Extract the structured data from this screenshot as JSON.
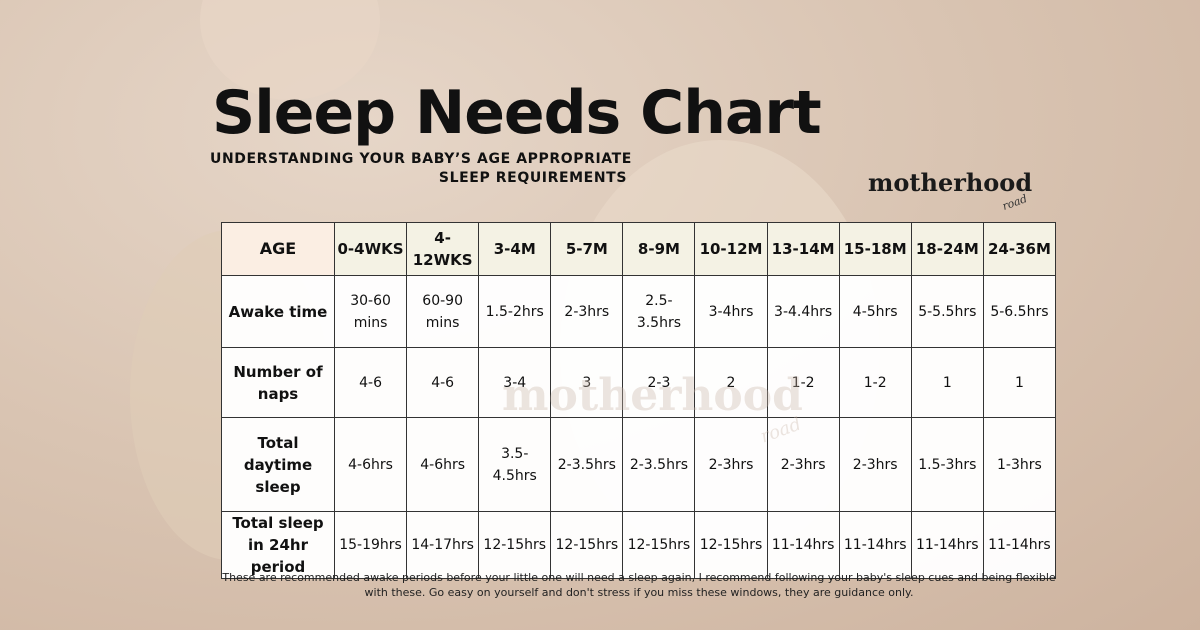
{
  "header": {
    "title": "Sleep Needs Chart",
    "subtitle_lines": [
      "UNDERSTANDING YOUR BABY’S AGE APPROPRIATE",
      "SLEEP REQUIREMENTS"
    ]
  },
  "brand": {
    "name": "motherhood",
    "tagline": "road"
  },
  "watermark": {
    "name": "motherhood",
    "tagline": "road"
  },
  "table": {
    "columns": [
      "AGE",
      "0-4WKS",
      "4-12WKS",
      "3-4M",
      "5-7M",
      "8-9M",
      "10-12M",
      "13-14M",
      "15-18M",
      "18-24M",
      "24-36M"
    ],
    "rows": [
      [
        "Awake time",
        "30-60 mins",
        "60-90 mins",
        "1.5-2hrs",
        "2-3hrs",
        "2.5-3.5hrs",
        "3-4hrs",
        "3-4.4hrs",
        "4-5hrs",
        "5-5.5hrs",
        "5-6.5hrs"
      ],
      [
        "Number of naps",
        "4-6",
        "4-6",
        "3-4",
        "3",
        "2-3",
        "2",
        "1-2",
        "1-2",
        "1",
        "1"
      ],
      [
        "Total daytime sleep",
        "4-6hrs",
        "4-6hrs",
        "3.5-4.5hrs",
        "2-3.5hrs",
        "2-3.5hrs",
        "2-3hrs",
        "2-3hrs",
        "2-3hrs",
        "1.5-3hrs",
        "1-3hrs"
      ],
      [
        "Total sleep in 24hr period",
        "15-19hrs",
        "14-17hrs",
        "12-15hrs",
        "12-15hrs",
        "12-15hrs",
        "12-15hrs",
        "11-14hrs",
        "11-14hrs",
        "11-14hrs",
        "11-14hrs"
      ]
    ]
  },
  "footnote": "These are recommended awake periods before your little one will need a sleep again, I recommend following your baby's sleep cues and being flexible with these. Go easy on yourself and don't stress if you miss these windows, they are guidance only."
}
